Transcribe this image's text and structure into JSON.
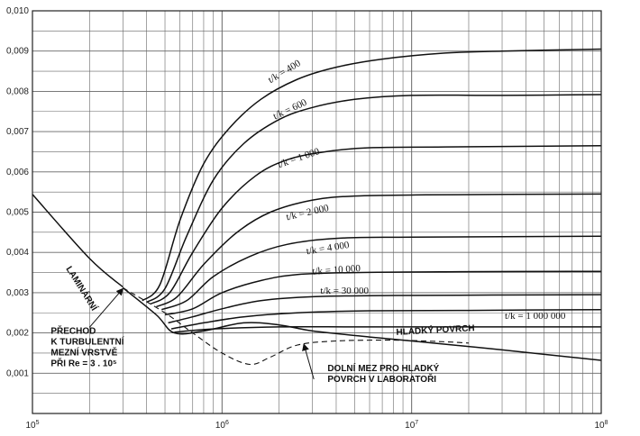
{
  "chart_data": {
    "type": "line",
    "x_scale": "log",
    "xlim": [
      100000,
      100000000
    ],
    "ylim": [
      0,
      0.01
    ],
    "grid": true,
    "x_ticks": [
      {
        "value": 100000,
        "base": "10",
        "exp": "5"
      },
      {
        "value": 1000000,
        "base": "10",
        "exp": "6"
      },
      {
        "value": 10000000,
        "base": "10",
        "exp": "7"
      },
      {
        "value": 100000000,
        "base": "10",
        "exp": "8"
      }
    ],
    "y_ticks": [
      {
        "value": 0.001,
        "label": "0,001"
      },
      {
        "value": 0.002,
        "label": "0,002"
      },
      {
        "value": 0.003,
        "label": "0,003"
      },
      {
        "value": 0.004,
        "label": "0,004"
      },
      {
        "value": 0.005,
        "label": "0,005"
      },
      {
        "value": 0.006,
        "label": "0,006"
      },
      {
        "value": 0.007,
        "label": "0,007"
      },
      {
        "value": 0.008,
        "label": "0,008"
      },
      {
        "value": 0.009,
        "label": "0,009"
      },
      {
        "value": 0.01,
        "label": "0,010"
      }
    ],
    "series": [
      {
        "name": "LAMINÁRNÍ",
        "style": "solid",
        "points": [
          [
            100000,
            0.00544
          ],
          [
            200000,
            0.00385
          ],
          [
            300000,
            0.00314
          ]
        ]
      },
      {
        "name": "t/k = 400",
        "style": "solid",
        "points": [
          [
            380000,
            0.0028
          ],
          [
            470000,
            0.0032
          ],
          [
            600000,
            0.0048
          ],
          [
            800000,
            0.0062
          ],
          [
            1100000,
            0.0071
          ],
          [
            1600000,
            0.0078
          ],
          [
            2500000,
            0.0083
          ],
          [
            4000000,
            0.0086
          ],
          [
            7000000,
            0.0088
          ],
          [
            15000000,
            0.00895
          ],
          [
            30000000,
            0.009
          ],
          [
            100000000,
            0.00905
          ]
        ]
      },
      {
        "name": "t/k = 600",
        "style": "solid",
        "points": [
          [
            400000,
            0.00276
          ],
          [
            500000,
            0.0031
          ],
          [
            650000,
            0.0044
          ],
          [
            900000,
            0.0058
          ],
          [
            1300000,
            0.0067
          ],
          [
            2000000,
            0.0073
          ],
          [
            3000000,
            0.0076
          ],
          [
            5000000,
            0.0078
          ],
          [
            10000000,
            0.0079
          ],
          [
            30000000,
            0.0079
          ],
          [
            100000000,
            0.00792
          ]
        ]
      },
      {
        "name": "t/k = 1 000",
        "style": "solid",
        "points": [
          [
            420000,
            0.00272
          ],
          [
            530000,
            0.003
          ],
          [
            700000,
            0.004
          ],
          [
            1000000,
            0.0051
          ],
          [
            1500000,
            0.0059
          ],
          [
            2200000,
            0.0063
          ],
          [
            3500000,
            0.0065
          ],
          [
            6000000,
            0.0066
          ],
          [
            15000000,
            0.00662
          ],
          [
            100000000,
            0.00665
          ]
        ]
      },
      {
        "name": "t/k = 2 000",
        "style": "solid",
        "points": [
          [
            450000,
            0.00265
          ],
          [
            580000,
            0.0029
          ],
          [
            800000,
            0.0037
          ],
          [
            1200000,
            0.0045
          ],
          [
            1800000,
            0.005
          ],
          [
            3000000,
            0.0053
          ],
          [
            5000000,
            0.0054
          ],
          [
            12000000,
            0.00543
          ],
          [
            100000000,
            0.00545
          ]
        ]
      },
      {
        "name": "t/k = 4 000",
        "style": "solid",
        "points": [
          [
            480000,
            0.00258
          ],
          [
            650000,
            0.0028
          ],
          [
            900000,
            0.0034
          ],
          [
            1400000,
            0.0039
          ],
          [
            2200000,
            0.0042
          ],
          [
            4000000,
            0.00435
          ],
          [
            10000000,
            0.00438
          ],
          [
            100000000,
            0.0044
          ]
        ]
      },
      {
        "name": "t/k = 10 000",
        "style": "solid",
        "points": [
          [
            500000,
            0.00245
          ],
          [
            700000,
            0.0026
          ],
          [
            1000000,
            0.003
          ],
          [
            1600000,
            0.0033
          ],
          [
            2500000,
            0.00345
          ],
          [
            5000000,
            0.0035
          ],
          [
            15000000,
            0.00352
          ],
          [
            100000000,
            0.00353
          ]
        ]
      },
      {
        "name": "t/k = 30 000",
        "style": "solid",
        "points": [
          [
            520000,
            0.00225
          ],
          [
            700000,
            0.0024
          ],
          [
            1000000,
            0.0026
          ],
          [
            1600000,
            0.0028
          ],
          [
            3000000,
            0.0029
          ],
          [
            8000000,
            0.00293
          ],
          [
            100000000,
            0.00295
          ]
        ]
      },
      {
        "name": "",
        "style": "solid",
        "points": [
          [
            540000,
            0.0021
          ],
          [
            800000,
            0.00225
          ],
          [
            1300000,
            0.0024
          ],
          [
            2500000,
            0.0025
          ],
          [
            6000000,
            0.00255
          ],
          [
            20000000,
            0.00256
          ],
          [
            100000000,
            0.00258
          ]
        ]
      },
      {
        "name": "t/k = 1 000 000",
        "style": "solid",
        "points": [
          [
            560000,
            0.00202
          ],
          [
            900000,
            0.0021
          ],
          [
            2000000,
            0.00215
          ],
          [
            5000000,
            0.00215
          ],
          [
            15000000,
            0.00215
          ],
          [
            100000000,
            0.00215
          ]
        ]
      },
      {
        "name": "HLADKÝ POVRCH",
        "style": "solid",
        "points": [
          [
            300000,
            0.00312
          ],
          [
            450000,
            0.00245
          ],
          [
            560000,
            0.002
          ],
          [
            800000,
            0.00205
          ],
          [
            1300000,
            0.00225
          ],
          [
            2000000,
            0.0022
          ],
          [
            3000000,
            0.00205
          ],
          [
            6000000,
            0.0019
          ],
          [
            10000000,
            0.0018
          ],
          [
            30000000,
            0.00158
          ],
          [
            100000000,
            0.00132
          ]
        ]
      },
      {
        "name": "DOLNÍ MEZ PRO HLADKÝ POVRCH V LABORATOŘI",
        "style": "dashed",
        "points": [
          [
            300000,
            0.00312
          ],
          [
            500000,
            0.0025
          ],
          [
            700000,
            0.002
          ],
          [
            1000000,
            0.0015
          ],
          [
            1400000,
            0.00122
          ],
          [
            1800000,
            0.0014
          ],
          [
            2500000,
            0.0017
          ],
          [
            4000000,
            0.0018
          ],
          [
            8000000,
            0.00182
          ],
          [
            15000000,
            0.00178
          ],
          [
            20000000,
            0.00175
          ]
        ]
      }
    ],
    "labels": [
      {
        "text": "t/k = 400",
        "x": 1800000,
        "y": 0.0082,
        "angle": -31
      },
      {
        "text": "t/k = 600",
        "x": 1900000,
        "y": 0.0073,
        "angle": -25
      },
      {
        "text": "t/k = 1 000",
        "x": 2000000,
        "y": 0.0061,
        "angle": -19
      },
      {
        "text": "t/k = 2 000",
        "x": 2200000,
        "y": 0.0048,
        "angle": -13
      },
      {
        "text": "t/k = 4 000",
        "x": 2800000,
        "y": 0.00395,
        "angle": -9
      },
      {
        "text": "t/k = 10 000",
        "x": 3000000,
        "y": 0.00345,
        "angle": -4
      },
      {
        "text": "t/k = 30 000",
        "x": 3300000,
        "y": 0.00297,
        "angle": 0
      },
      {
        "text": "t/k = 1 000 000",
        "x": 31000000,
        "y": 0.00235,
        "angle": 0
      },
      {
        "text": "HLADKÝ POVRCH",
        "x": 8300000,
        "y": 0.00195,
        "angle": -3
      },
      {
        "text": "LAMINÁRNÍ",
        "x": 150000,
        "y": 0.0036,
        "angle": 58
      }
    ],
    "annotations": [
      {
        "lines": [
          "PŘECHOD",
          "K TURBULENTNÍ",
          "MEZNÍ VRSTVĚ",
          "PŘI  Re = 3 . 10⁵"
        ],
        "x": 125000,
        "y": 0.00198,
        "arrow_from": [
          200000,
          0.00214
        ],
        "arrow_to": [
          300000,
          0.0031
        ]
      },
      {
        "lines": [
          "DOLNÍ MEZ PRO HLADKÝ",
          "POVRCH V LABORATOŘI"
        ],
        "x": 3600000,
        "y": 0.00105,
        "arrow_from": [
          3050000,
          0.00085
        ],
        "arrow_to": [
          2700000,
          0.00172
        ]
      }
    ]
  }
}
